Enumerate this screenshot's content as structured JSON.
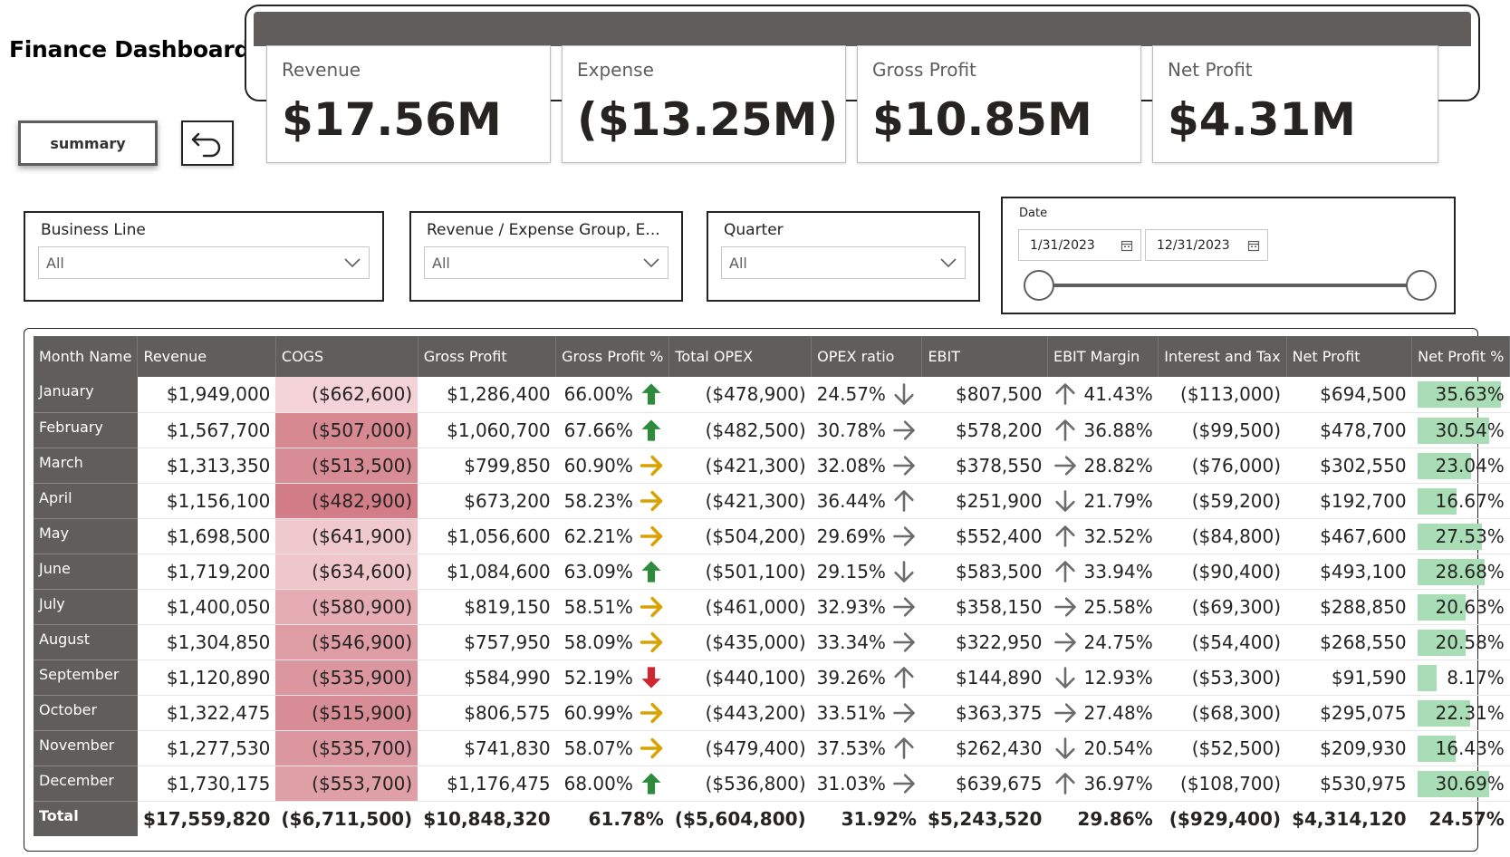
{
  "title": "Finance Dashboard",
  "buttons": {
    "summary_label": "summary",
    "back_icon": "undo-icon"
  },
  "kpis": [
    {
      "label": "Revenue",
      "value": "$17.56M"
    },
    {
      "label": "Expense",
      "value": "($13.25M)"
    },
    {
      "label": "Gross Profit",
      "value": "$10.85M"
    },
    {
      "label": "Net Profit",
      "value": "$4.31M"
    }
  ],
  "slicers": [
    {
      "label": "Business Line",
      "value": "All"
    },
    {
      "label": "Revenue / Expense Group, E...",
      "value": "All"
    },
    {
      "label": "Quarter",
      "value": "All"
    }
  ],
  "date_slicer": {
    "label": "Date",
    "start": "1/31/2023",
    "end": "12/31/2023",
    "range_start_fraction": 0,
    "range_end_fraction": 1
  },
  "colors": {
    "header_bg": "#605E5C",
    "arrow_green": "#2E8B3E",
    "arrow_amber": "#D8A200",
    "arrow_red": "#D0262E",
    "arrow_gray": "#6B6B6B",
    "net_profit_bar": "#A8DDB5",
    "cogs_scale_low": "#F4D3D8",
    "cogs_scale_high": "#D27D87"
  },
  "table": {
    "headers": [
      "Month Name",
      "Revenue",
      "COGS",
      "Gross Profit",
      "Gross Profit %",
      "Total OPEX",
      "OPEX ratio",
      "EBIT",
      "EBIT Margin",
      "Interest and Tax",
      "Net Profit",
      "Net Profit %"
    ],
    "rows": [
      {
        "month": "January",
        "revenue": "$1,949,000",
        "cogs": "($662,600)",
        "cogs_raw": 662600,
        "gross_profit": "$1,286,400",
        "gp_pct": "66.00%",
        "gp_arrow": "up",
        "gp_color": "green",
        "opex": "($478,900)",
        "opex_ratio": "24.57%",
        "opex_arrow": "down",
        "ebit": "$807,500",
        "ebit_arrow": "up",
        "ebit_margin": "41.43%",
        "int_tax": "($113,000)",
        "net_profit": "$694,500",
        "np_pct": "35.63%",
        "np_pct_value": 35.63
      },
      {
        "month": "February",
        "revenue": "$1,567,700",
        "cogs": "($507,000)",
        "cogs_raw": 507000,
        "gross_profit": "$1,060,700",
        "gp_pct": "67.66%",
        "gp_arrow": "up",
        "gp_color": "green",
        "opex": "($482,500)",
        "opex_ratio": "30.78%",
        "opex_arrow": "right",
        "ebit": "$578,200",
        "ebit_arrow": "up",
        "ebit_margin": "36.88%",
        "int_tax": "($99,500)",
        "net_profit": "$478,700",
        "np_pct": "30.54%",
        "np_pct_value": 30.54
      },
      {
        "month": "March",
        "revenue": "$1,313,350",
        "cogs": "($513,500)",
        "cogs_raw": 513500,
        "gross_profit": "$799,850",
        "gp_pct": "60.90%",
        "gp_arrow": "right",
        "gp_color": "amber",
        "opex": "($421,300)",
        "opex_ratio": "32.08%",
        "opex_arrow": "right",
        "ebit": "$378,550",
        "ebit_arrow": "right",
        "ebit_margin": "28.82%",
        "int_tax": "($76,000)",
        "net_profit": "$302,550",
        "np_pct": "23.04%",
        "np_pct_value": 23.04
      },
      {
        "month": "April",
        "revenue": "$1,156,100",
        "cogs": "($482,900)",
        "cogs_raw": 482900,
        "gross_profit": "$673,200",
        "gp_pct": "58.23%",
        "gp_arrow": "right",
        "gp_color": "amber",
        "opex": "($421,300)",
        "opex_ratio": "36.44%",
        "opex_arrow": "up",
        "ebit": "$251,900",
        "ebit_arrow": "down",
        "ebit_margin": "21.79%",
        "int_tax": "($59,200)",
        "net_profit": "$192,700",
        "np_pct": "16.67%",
        "np_pct_value": 16.67
      },
      {
        "month": "May",
        "revenue": "$1,698,500",
        "cogs": "($641,900)",
        "cogs_raw": 641900,
        "gross_profit": "$1,056,600",
        "gp_pct": "62.21%",
        "gp_arrow": "right",
        "gp_color": "amber",
        "opex": "($504,200)",
        "opex_ratio": "29.69%",
        "opex_arrow": "right",
        "ebit": "$552,400",
        "ebit_arrow": "up",
        "ebit_margin": "32.52%",
        "int_tax": "($84,800)",
        "net_profit": "$467,600",
        "np_pct": "27.53%",
        "np_pct_value": 27.53
      },
      {
        "month": "June",
        "revenue": "$1,719,200",
        "cogs": "($634,600)",
        "cogs_raw": 634600,
        "gross_profit": "$1,084,600",
        "gp_pct": "63.09%",
        "gp_arrow": "up",
        "gp_color": "green",
        "opex": "($501,100)",
        "opex_ratio": "29.15%",
        "opex_arrow": "down",
        "ebit": "$583,500",
        "ebit_arrow": "up",
        "ebit_margin": "33.94%",
        "int_tax": "($90,400)",
        "net_profit": "$493,100",
        "np_pct": "28.68%",
        "np_pct_value": 28.68
      },
      {
        "month": "July",
        "revenue": "$1,400,050",
        "cogs": "($580,900)",
        "cogs_raw": 580900,
        "gross_profit": "$819,150",
        "gp_pct": "58.51%",
        "gp_arrow": "right",
        "gp_color": "amber",
        "opex": "($461,000)",
        "opex_ratio": "32.93%",
        "opex_arrow": "right",
        "ebit": "$358,150",
        "ebit_arrow": "right",
        "ebit_margin": "25.58%",
        "int_tax": "($69,300)",
        "net_profit": "$288,850",
        "np_pct": "20.63%",
        "np_pct_value": 20.63
      },
      {
        "month": "August",
        "revenue": "$1,304,850",
        "cogs": "($546,900)",
        "cogs_raw": 546900,
        "gross_profit": "$757,950",
        "gp_pct": "58.09%",
        "gp_arrow": "right",
        "gp_color": "amber",
        "opex": "($435,000)",
        "opex_ratio": "33.34%",
        "opex_arrow": "right",
        "ebit": "$322,950",
        "ebit_arrow": "right",
        "ebit_margin": "24.75%",
        "int_tax": "($54,400)",
        "net_profit": "$268,550",
        "np_pct": "20.58%",
        "np_pct_value": 20.58
      },
      {
        "month": "September",
        "revenue": "$1,120,890",
        "cogs": "($535,900)",
        "cogs_raw": 535900,
        "gross_profit": "$584,990",
        "gp_pct": "52.19%",
        "gp_arrow": "down",
        "gp_color": "red",
        "opex": "($440,100)",
        "opex_ratio": "39.26%",
        "opex_arrow": "up",
        "ebit": "$144,890",
        "ebit_arrow": "down",
        "ebit_margin": "12.93%",
        "int_tax": "($53,300)",
        "net_profit": "$91,590",
        "np_pct": "8.17%",
        "np_pct_value": 8.17
      },
      {
        "month": "October",
        "revenue": "$1,322,475",
        "cogs": "($515,900)",
        "cogs_raw": 515900,
        "gross_profit": "$806,575",
        "gp_pct": "60.99%",
        "gp_arrow": "right",
        "gp_color": "amber",
        "opex": "($443,200)",
        "opex_ratio": "33.51%",
        "opex_arrow": "right",
        "ebit": "$363,375",
        "ebit_arrow": "right",
        "ebit_margin": "27.48%",
        "int_tax": "($68,300)",
        "net_profit": "$295,075",
        "np_pct": "22.31%",
        "np_pct_value": 22.31
      },
      {
        "month": "November",
        "revenue": "$1,277,530",
        "cogs": "($535,700)",
        "cogs_raw": 535700,
        "gross_profit": "$741,830",
        "gp_pct": "58.07%",
        "gp_arrow": "right",
        "gp_color": "amber",
        "opex": "($479,400)",
        "opex_ratio": "37.53%",
        "opex_arrow": "up",
        "ebit": "$262,430",
        "ebit_arrow": "down",
        "ebit_margin": "20.54%",
        "int_tax": "($52,500)",
        "net_profit": "$209,930",
        "np_pct": "16.43%",
        "np_pct_value": 16.43
      },
      {
        "month": "December",
        "revenue": "$1,730,175",
        "cogs": "($553,700)",
        "cogs_raw": 553700,
        "gross_profit": "$1,176,475",
        "gp_pct": "68.00%",
        "gp_arrow": "up",
        "gp_color": "green",
        "opex": "($536,800)",
        "opex_ratio": "31.03%",
        "opex_arrow": "right",
        "ebit": "$639,675",
        "ebit_arrow": "up",
        "ebit_margin": "36.97%",
        "int_tax": "($108,700)",
        "net_profit": "$530,975",
        "np_pct": "30.69%",
        "np_pct_value": 30.69
      }
    ],
    "total": {
      "month": "Total",
      "revenue": "$17,559,820",
      "cogs": "($6,711,500)",
      "gross_profit": "$10,848,320",
      "gp_pct": "61.78%",
      "opex": "($5,604,800)",
      "opex_ratio": "31.92%",
      "ebit": "$5,243,520",
      "ebit_margin": "29.86%",
      "int_tax": "($929,400)",
      "net_profit": "$4,314,120",
      "np_pct": "24.57%"
    },
    "np_pct_bar_max": 35.63
  }
}
